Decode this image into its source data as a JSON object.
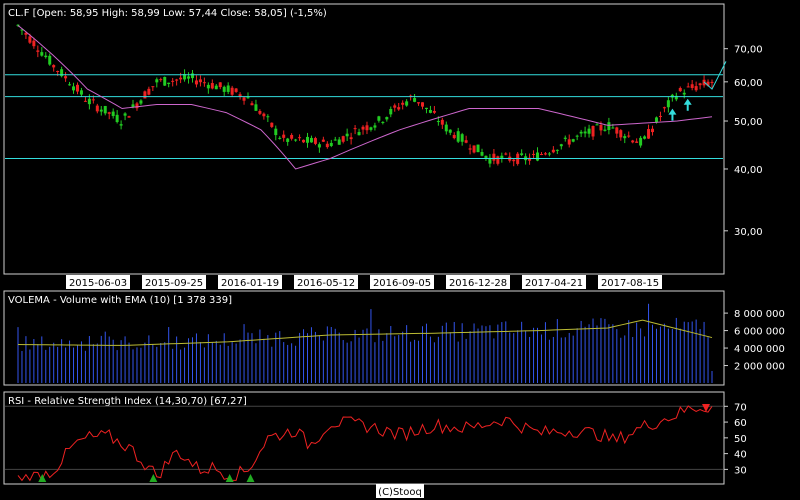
{
  "footer": "(C)Stooq",
  "chart_data": [
    {
      "type": "candlestick",
      "title": "CL.F [Open: 58,95  High: 58,99  Low: 57,44  Close: 58,05] (-1,5%)",
      "y_scale": "log",
      "ylim": [
        25,
        80
      ],
      "y_ticks": [
        "30,00",
        "40,00",
        "50,00",
        "60,00",
        "70,00"
      ],
      "x_ticks": [
        "2015-06-03",
        "2015-09-25",
        "2016-01-19",
        "2016-05-12",
        "2016-09-05",
        "2016-12-28",
        "2017-04-21",
        "2017-08-15"
      ],
      "horizontal_lines": [
        62,
        56,
        42
      ],
      "series": [
        {
          "name": "price_close_anchors",
          "x": [
            0,
            5,
            10,
            15,
            20,
            25,
            30,
            33,
            38,
            45,
            52,
            57,
            62,
            68,
            74,
            80,
            85,
            90,
            95,
            100
          ],
          "y": [
            78,
            65,
            55,
            50,
            60,
            61,
            58,
            56,
            46,
            45,
            50,
            56,
            48,
            42,
            42,
            46,
            49,
            45,
            57,
            60
          ]
        },
        {
          "name": "moving_average",
          "x": [
            0,
            5,
            10,
            15,
            20,
            25,
            30,
            35,
            40,
            45,
            55,
            65,
            75,
            85,
            95,
            100
          ],
          "y": [
            78,
            68,
            58,
            53,
            54,
            54,
            52,
            48,
            40,
            42,
            48,
            53,
            53,
            49,
            50,
            51
          ]
        }
      ],
      "colors": {
        "up": "#22cc22",
        "down": "#ee2222",
        "ma": "#cc66cc",
        "hline": "#33dddd",
        "arrow": "#33dddd",
        "spike": "#33dddd"
      }
    },
    {
      "type": "bar",
      "title": "VOLEMA - Volume with EMA (10) [1 378 339]",
      "y_ticks": [
        "2 000 000",
        "4 000 000",
        "6 000 000",
        "8 000 000"
      ],
      "ylim": [
        0,
        9500000
      ],
      "series": [
        {
          "name": "volume_anchors",
          "x": [
            0,
            20,
            40,
            60,
            80,
            100
          ],
          "y": [
            4500000,
            4600000,
            5300000,
            5800000,
            6200000,
            6300000
          ]
        },
        {
          "name": "ema",
          "x": [
            0,
            15,
            30,
            45,
            60,
            75,
            85,
            90,
            95,
            100
          ],
          "y": [
            4400000,
            4300000,
            4700000,
            5500000,
            5700000,
            6000000,
            6300000,
            7200000,
            6200000,
            5200000
          ]
        }
      ],
      "colors": {
        "bar": "#3355ee",
        "ema": "#bbbb33"
      }
    },
    {
      "type": "line",
      "title": "RSI - Relative Strength Index (14,30,70) [67,27]",
      "y_ticks": [
        "30",
        "40",
        "50",
        "60",
        "70"
      ],
      "ylim": [
        22,
        74
      ],
      "series": [
        {
          "name": "rsi",
          "x": [
            0,
            3,
            5,
            8,
            10,
            13,
            16,
            20,
            23,
            26,
            28,
            31,
            33,
            36,
            40,
            42,
            45,
            50,
            55,
            60,
            65,
            70,
            75,
            80,
            84,
            86,
            90,
            95,
            97,
            100
          ],
          "y": [
            24,
            26,
            29,
            45,
            50,
            51,
            44,
            26,
            42,
            30,
            31,
            26,
            29,
            50,
            55,
            45,
            60,
            58,
            52,
            58,
            56,
            62,
            53,
            55,
            52,
            48,
            57,
            65,
            69,
            70
          ]
        }
      ],
      "markers": {
        "green_up_at_x": [
          3.5,
          19.5,
          30.5,
          33.5
        ],
        "red_down_at_x": [
          100
        ]
      },
      "colors": {
        "line": "#ee2222",
        "marker_up": "#22aa22",
        "marker_down": "#ee2222"
      }
    }
  ]
}
